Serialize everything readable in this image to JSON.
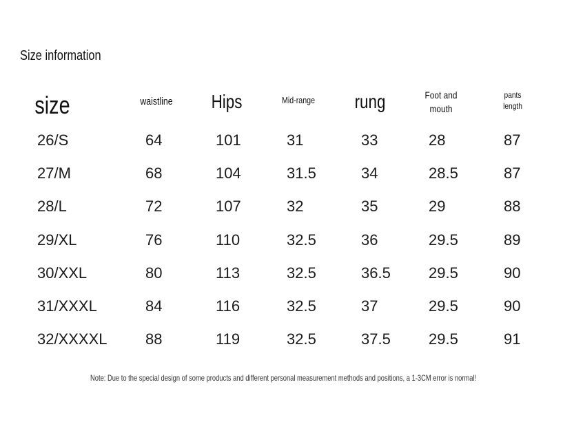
{
  "title": "Size information",
  "table": {
    "header": [
      "size",
      "waistline",
      "Hips",
      "Mid-range",
      "rung",
      "Foot and mouth",
      "pants length"
    ],
    "rows": [
      [
        "26/S",
        "64",
        "101",
        "31",
        "33",
        "28",
        "87"
      ],
      [
        "27/M",
        "68",
        "104",
        "31.5",
        "34",
        "28.5",
        "87"
      ],
      [
        "28/L",
        "72",
        "107",
        "32",
        "35",
        "29",
        "88"
      ],
      [
        "29/XL",
        "76",
        "110",
        "32.5",
        "36",
        "29.5",
        "89"
      ],
      [
        "30/XXL",
        "80",
        "113",
        "32.5",
        "36.5",
        "29.5",
        "90"
      ],
      [
        "31/XXXL",
        "84",
        "116",
        "32.5",
        "37",
        "29.5",
        "90"
      ],
      [
        "32/XXXXL",
        "88",
        "119",
        "32.5",
        "37.5",
        "29.5",
        "91"
      ]
    ]
  },
  "note": "Note: Due to the special design of some products and different personal measurement methods and positions, a 1-3CM error is normal!"
}
